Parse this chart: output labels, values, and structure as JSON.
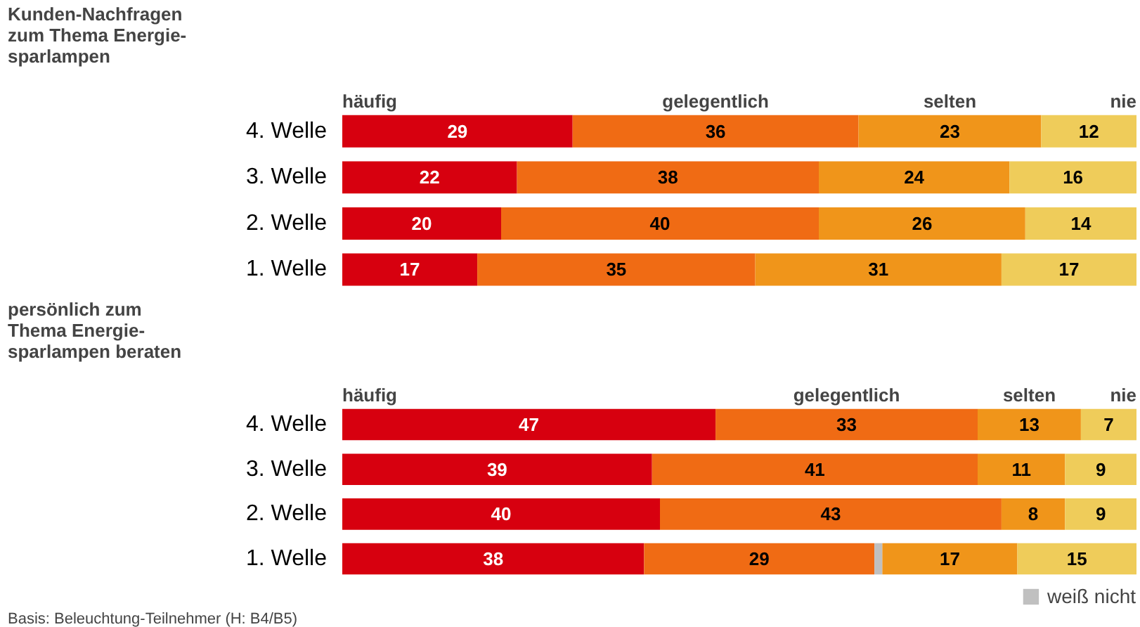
{
  "chart_data": [
    {
      "type": "bar",
      "orientation": "horizontal",
      "stacked": true,
      "data_labels": true,
      "grid": false,
      "title": "Kunden-Nachfragen\nzum Thema Energie-\nsparlampen",
      "categories": [
        "4. Welle",
        "3. Welle",
        "2. Welle",
        "1. Welle"
      ],
      "series": [
        {
          "name": "häufig",
          "color": "#d7000f",
          "values": [
            29,
            22,
            20,
            17
          ]
        },
        {
          "name": "gelegentlich",
          "color": "#f06b14",
          "values": [
            36,
            38,
            40,
            35
          ]
        },
        {
          "name": "selten",
          "color": "#f0951a",
          "values": [
            23,
            24,
            26,
            31
          ]
        },
        {
          "name": "nie",
          "color": "#efcc5a",
          "values": [
            12,
            16,
            14,
            17
          ]
        }
      ]
    },
    {
      "type": "bar",
      "orientation": "horizontal",
      "stacked": true,
      "data_labels": true,
      "grid": false,
      "legend": "bottom right",
      "title": "persönlich zum\nThema Energie-\nsparlampen beraten",
      "categories": [
        "4. Welle",
        "3. Welle",
        "2. Welle",
        "1. Welle"
      ],
      "series": [
        {
          "name": "häufig",
          "color": "#d7000f",
          "values": [
            47,
            39,
            40,
            38
          ]
        },
        {
          "name": "gelegentlich",
          "color": "#f06b14",
          "values": [
            33,
            41,
            43,
            29
          ]
        },
        {
          "name": "weiß nicht",
          "color": "#c0c0c0",
          "values": [
            null,
            null,
            null,
            1
          ],
          "value_labels": [
            null,
            null,
            null,
            null
          ]
        },
        {
          "name": "selten",
          "color": "#f0951a",
          "values": [
            13,
            11,
            8,
            17
          ]
        },
        {
          "name": "nie",
          "color": "#efcc5a",
          "values": [
            7,
            9,
            9,
            15
          ]
        }
      ],
      "annotations": [
        "Basis: Beleuchtung-Teilnehmer (H: B4/B5)"
      ]
    }
  ]
}
